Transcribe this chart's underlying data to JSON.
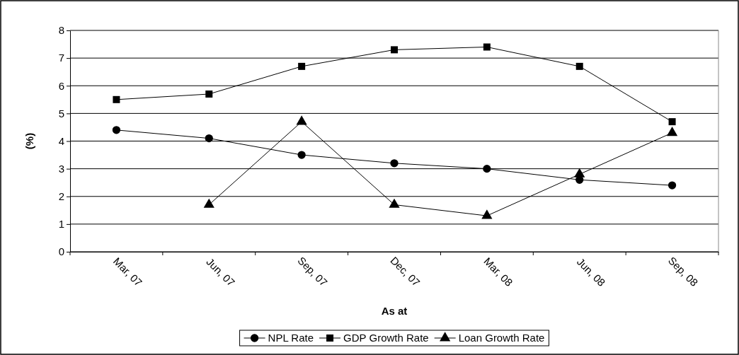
{
  "chart_data": {
    "type": "line",
    "xlabel": "As at",
    "ylabel": "(%)",
    "categories": [
      "Mar, 07",
      "Jun, 07",
      "Sep, 07",
      "Dec, 07",
      "Mar, 08",
      "Jun, 08",
      "Sep, 08"
    ],
    "ylim": [
      0,
      8
    ],
    "yticks": [
      0,
      1,
      2,
      3,
      4,
      5,
      6,
      7,
      8
    ],
    "grid": "y",
    "legend": "bottom",
    "series": [
      {
        "name": "NPL Rate",
        "color": "#000000",
        "marker": "circle",
        "values": [
          4.4,
          4.1,
          3.5,
          3.2,
          3.0,
          2.6,
          2.4
        ]
      },
      {
        "name": "GDP Growth Rate",
        "color": "#000000",
        "marker": "square",
        "values": [
          5.5,
          5.7,
          6.7,
          7.3,
          7.4,
          6.7,
          4.7
        ]
      },
      {
        "name": "Loan Growth Rate",
        "color": "#000000",
        "marker": "triangle",
        "values": [
          null,
          1.7,
          4.7,
          1.7,
          1.3,
          2.8,
          4.3
        ]
      }
    ]
  }
}
